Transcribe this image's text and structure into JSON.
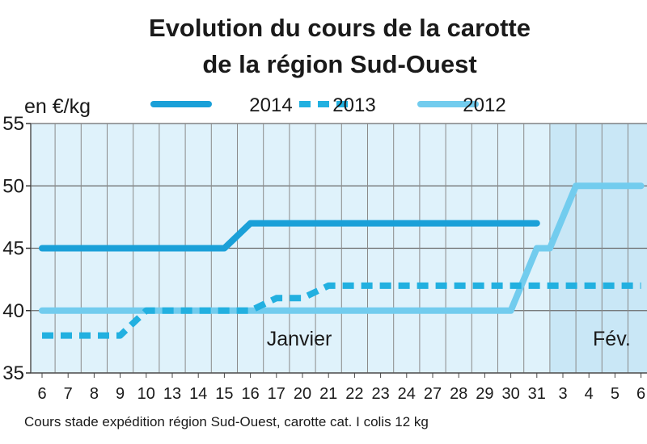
{
  "chart_data": {
    "type": "line",
    "title_line1": "Evolution du cours de la carotte",
    "title_line2": "de la région Sud-Ouest",
    "unit": "en €/kg",
    "ylim": [
      35,
      55
    ],
    "yticks": [
      "35",
      "40",
      "45",
      "50",
      "55"
    ],
    "categories": [
      "6",
      "7",
      "8",
      "9",
      "10",
      "13",
      "14",
      "15",
      "16",
      "17",
      "20",
      "21",
      "22",
      "23",
      "24",
      "27",
      "28",
      "29",
      "30",
      "31",
      "3",
      "4",
      "5",
      "6"
    ],
    "month_labels": [
      {
        "text": "Janvier",
        "category_index": 10
      },
      {
        "text": "Fév.",
        "category_index": 22
      }
    ],
    "february_start_index": 20,
    "series": [
      {
        "name": "2014",
        "style": "solid",
        "color": "#1aa0d8",
        "points": [
          [
            0,
            45
          ],
          [
            7,
            45
          ],
          [
            8,
            47
          ],
          [
            19,
            47
          ]
        ]
      },
      {
        "name": "2013",
        "style": "dashed",
        "color": "#22b0e0",
        "points": [
          [
            0,
            38
          ],
          [
            3,
            38
          ],
          [
            4,
            40
          ],
          [
            8,
            40
          ],
          [
            9,
            41
          ],
          [
            10,
            41
          ],
          [
            11,
            42
          ],
          [
            23,
            42
          ]
        ]
      },
      {
        "name": "2012",
        "style": "solid",
        "color": "#72ccee",
        "points": [
          [
            0,
            40
          ],
          [
            18,
            40
          ],
          [
            19,
            45
          ],
          [
            19.5,
            45
          ],
          [
            20.5,
            50
          ],
          [
            23,
            50
          ]
        ]
      }
    ],
    "source": "Cours stade expédition région Sud-Ouest, carotte cat. I colis 12 kg",
    "grid": true,
    "legend_position": "top"
  }
}
